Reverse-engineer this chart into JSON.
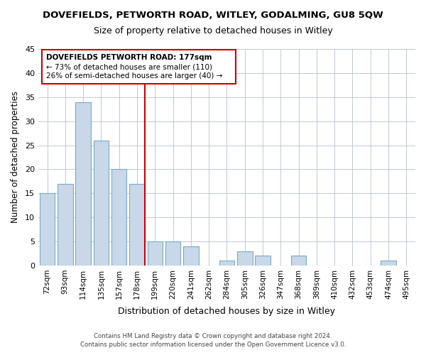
{
  "title": "DOVEFIELDS, PETWORTH ROAD, WITLEY, GODALMING, GU8 5QW",
  "subtitle": "Size of property relative to detached houses in Witley",
  "xlabel": "Distribution of detached houses by size in Witley",
  "ylabel": "Number of detached properties",
  "footer_line1": "Contains HM Land Registry data © Crown copyright and database right 2024.",
  "footer_line2": "Contains public sector information licensed under the Open Government Licence v3.0.",
  "bar_labels": [
    "72sqm",
    "93sqm",
    "114sqm",
    "135sqm",
    "157sqm",
    "178sqm",
    "199sqm",
    "220sqm",
    "241sqm",
    "262sqm",
    "284sqm",
    "305sqm",
    "326sqm",
    "347sqm",
    "368sqm",
    "389sqm",
    "410sqm",
    "432sqm",
    "453sqm",
    "474sqm",
    "495sqm"
  ],
  "bar_values": [
    15,
    17,
    34,
    26,
    20,
    17,
    5,
    5,
    4,
    0,
    1,
    3,
    2,
    0,
    2,
    0,
    0,
    0,
    0,
    1,
    0
  ],
  "bar_color": "#c8d8e8",
  "bar_edge_color": "#7aaac8",
  "property_line_color": "#cc0000",
  "annotation_title": "DOVEFIELDS PETWORTH ROAD: 177sqm",
  "annotation_line1": "← 73% of detached houses are smaller (110)",
  "annotation_line2": "26% of semi-detached houses are larger (40) →",
  "annotation_box_color": "#ffffff",
  "annotation_box_edge": "#cc0000",
  "ylim": [
    0,
    45
  ],
  "yticks": [
    0,
    5,
    10,
    15,
    20,
    25,
    30,
    35,
    40,
    45
  ]
}
